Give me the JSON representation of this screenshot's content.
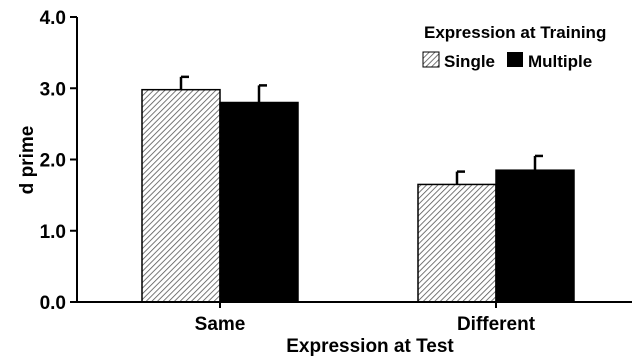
{
  "chart_data": {
    "type": "bar",
    "title": "",
    "xlabel": "Expression at Test",
    "ylabel": "d prime",
    "categories": [
      "Same",
      "Different"
    ],
    "series": [
      {
        "name": "Single",
        "values": [
          2.98,
          1.65
        ],
        "errors": [
          0.18,
          0.18
        ],
        "fill": "hatched"
      },
      {
        "name": "Multiple",
        "values": [
          2.8,
          1.85
        ],
        "errors": [
          0.24,
          0.2
        ],
        "fill": "#000000"
      }
    ],
    "ylim": [
      0,
      4
    ],
    "yticks": [
      "0.0",
      "1.0",
      "2.0",
      "3.0",
      "4.0"
    ],
    "grid": false,
    "legend": {
      "title": "Expression at Training",
      "placement": "top-right"
    },
    "colors": {
      "hatch_line": "#555555",
      "hatch_bg": "#ffffff",
      "solid": "#000000",
      "axis": "#000000"
    }
  }
}
